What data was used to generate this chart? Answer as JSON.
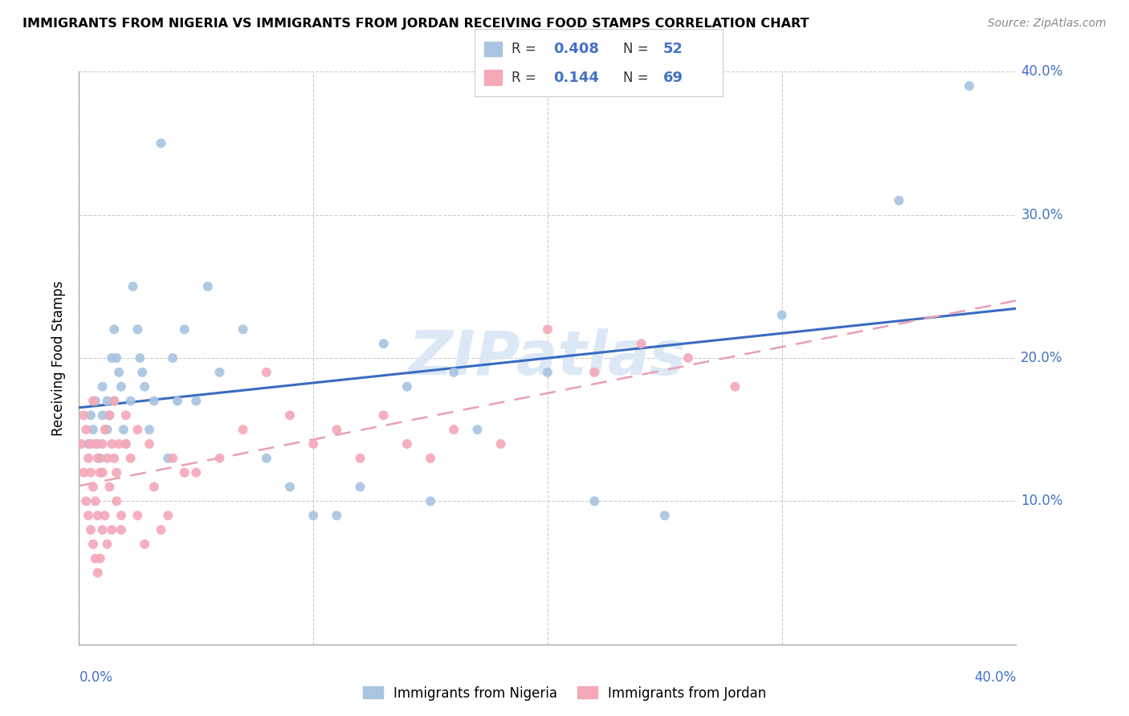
{
  "title": "IMMIGRANTS FROM NIGERIA VS IMMIGRANTS FROM JORDAN RECEIVING FOOD STAMPS CORRELATION CHART",
  "source": "Source: ZipAtlas.com",
  "ylabel": "Receiving Food Stamps",
  "xlim": [
    0.0,
    0.4
  ],
  "ylim": [
    0.0,
    0.4
  ],
  "nigeria_R": 0.408,
  "nigeria_N": 52,
  "jordan_R": 0.144,
  "jordan_N": 69,
  "nigeria_color": "#a8c4e0",
  "jordan_color": "#f4a8b8",
  "nigeria_line_color": "#3a6bbf",
  "jordan_line_color": "#e8a0b4",
  "label_color": "#4472c4",
  "watermark": "ZIPatlas",
  "watermark_color": "#dce8f5",
  "nigeria_x": [
    0.004,
    0.005,
    0.006,
    0.007,
    0.008,
    0.009,
    0.01,
    0.01,
    0.012,
    0.012,
    0.013,
    0.014,
    0.015,
    0.015,
    0.016,
    0.017,
    0.018,
    0.019,
    0.02,
    0.022,
    0.023,
    0.025,
    0.026,
    0.027,
    0.028,
    0.03,
    0.032,
    0.035,
    0.038,
    0.04,
    0.042,
    0.045,
    0.05,
    0.055,
    0.06,
    0.07,
    0.08,
    0.09,
    0.1,
    0.11,
    0.12,
    0.13,
    0.14,
    0.15,
    0.16,
    0.17,
    0.2,
    0.22,
    0.25,
    0.3,
    0.35,
    0.38
  ],
  "nigeria_y": [
    0.14,
    0.16,
    0.15,
    0.17,
    0.14,
    0.13,
    0.16,
    0.18,
    0.17,
    0.15,
    0.16,
    0.2,
    0.17,
    0.22,
    0.2,
    0.19,
    0.18,
    0.15,
    0.14,
    0.17,
    0.25,
    0.22,
    0.2,
    0.19,
    0.18,
    0.15,
    0.17,
    0.35,
    0.13,
    0.2,
    0.17,
    0.22,
    0.17,
    0.25,
    0.19,
    0.22,
    0.13,
    0.11,
    0.09,
    0.09,
    0.11,
    0.21,
    0.18,
    0.1,
    0.19,
    0.15,
    0.19,
    0.1,
    0.09,
    0.23,
    0.31,
    0.39
  ],
  "jordan_x": [
    0.001,
    0.002,
    0.002,
    0.003,
    0.003,
    0.004,
    0.004,
    0.005,
    0.005,
    0.005,
    0.006,
    0.006,
    0.006,
    0.007,
    0.007,
    0.007,
    0.008,
    0.008,
    0.008,
    0.009,
    0.009,
    0.01,
    0.01,
    0.01,
    0.011,
    0.011,
    0.012,
    0.012,
    0.013,
    0.013,
    0.014,
    0.014,
    0.015,
    0.015,
    0.016,
    0.016,
    0.017,
    0.018,
    0.018,
    0.02,
    0.02,
    0.022,
    0.025,
    0.025,
    0.028,
    0.03,
    0.032,
    0.035,
    0.038,
    0.04,
    0.045,
    0.05,
    0.06,
    0.07,
    0.08,
    0.09,
    0.1,
    0.11,
    0.12,
    0.13,
    0.14,
    0.15,
    0.16,
    0.18,
    0.2,
    0.22,
    0.24,
    0.26,
    0.28
  ],
  "jordan_y": [
    0.14,
    0.16,
    0.12,
    0.15,
    0.1,
    0.13,
    0.09,
    0.14,
    0.08,
    0.12,
    0.17,
    0.07,
    0.11,
    0.14,
    0.06,
    0.1,
    0.13,
    0.05,
    0.09,
    0.12,
    0.06,
    0.14,
    0.08,
    0.12,
    0.15,
    0.09,
    0.13,
    0.07,
    0.11,
    0.16,
    0.14,
    0.08,
    0.17,
    0.13,
    0.1,
    0.12,
    0.14,
    0.09,
    0.08,
    0.14,
    0.16,
    0.13,
    0.15,
    0.09,
    0.07,
    0.14,
    0.11,
    0.08,
    0.09,
    0.13,
    0.12,
    0.12,
    0.13,
    0.15,
    0.19,
    0.16,
    0.14,
    0.15,
    0.13,
    0.16,
    0.14,
    0.13,
    0.15,
    0.14,
    0.22,
    0.19,
    0.21,
    0.2,
    0.18
  ]
}
